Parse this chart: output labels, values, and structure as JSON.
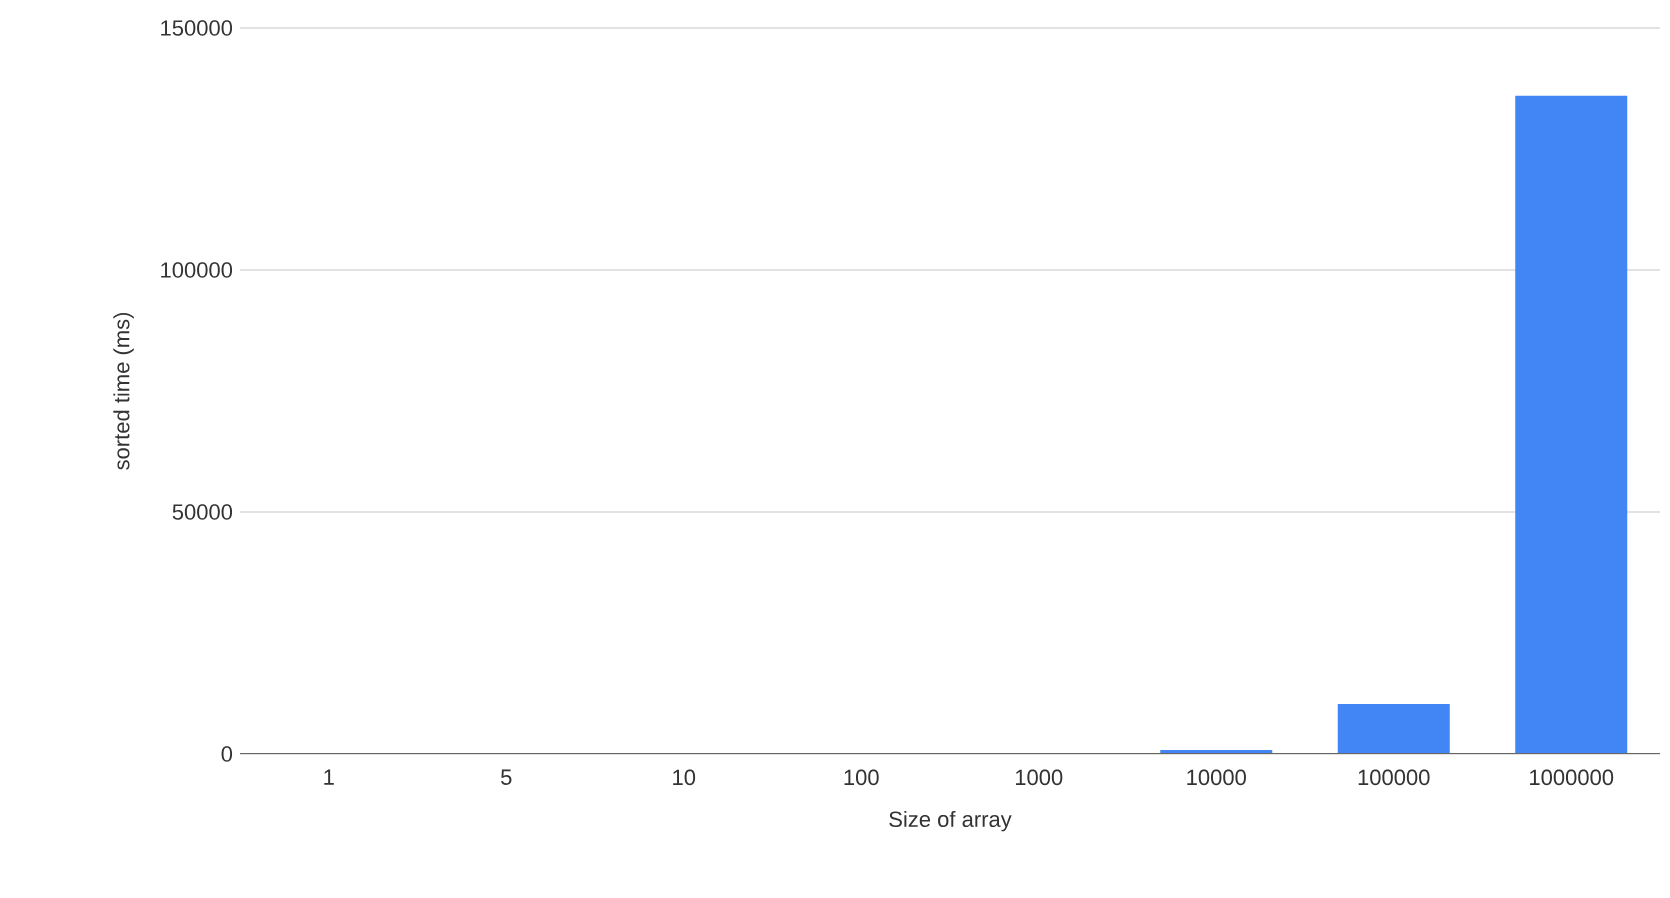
{
  "chart_data": {
    "type": "bar",
    "xlabel": "Size of array",
    "ylabel": "sorted time (ms)",
    "categories": [
      "1",
      "5",
      "10",
      "100",
      "1000",
      "10000",
      "100000",
      "1000000"
    ],
    "values": [
      0,
      0,
      0,
      0,
      0,
      800,
      10300,
      136000
    ],
    "color": "#4285f4",
    "ylim": [
      0,
      150000
    ],
    "yticks": [
      0,
      50000,
      100000,
      150000
    ],
    "grid": "y"
  }
}
